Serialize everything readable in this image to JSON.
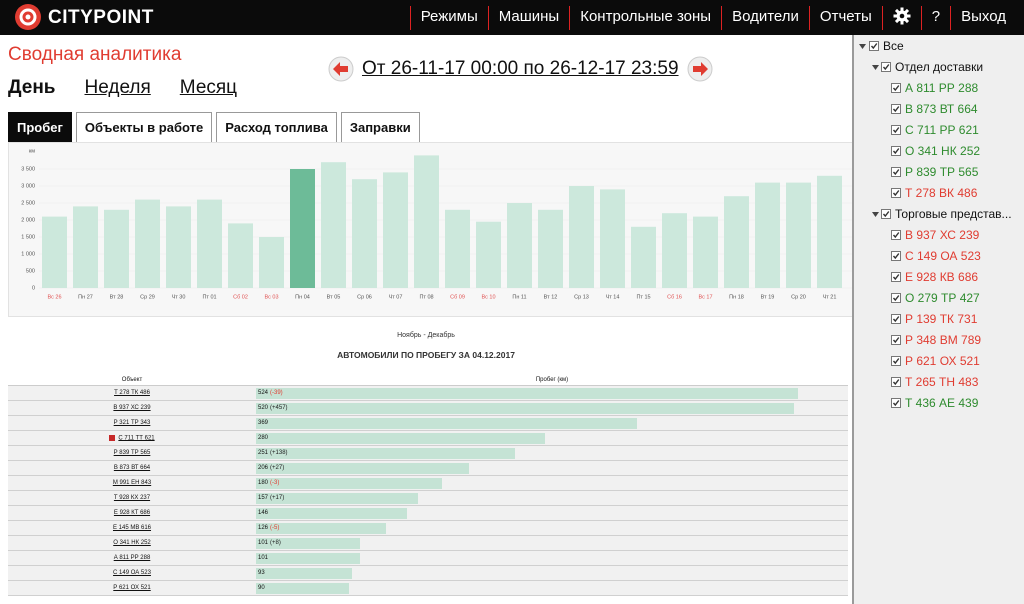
{
  "header": {
    "logo": "CITYPOINT",
    "menu": [
      "Режимы",
      "Машины",
      "Контрольные зоны",
      "Водители",
      "Отчеты"
    ],
    "help": "?",
    "logout": "Выход"
  },
  "page": {
    "title": "Сводная аналитика",
    "date_range": "От 26-11-17 00:00 по 26-12-17 23:59",
    "periods": [
      "День",
      "Неделя",
      "Месяц"
    ],
    "tabs": [
      "Пробег",
      "Объекты в работе",
      "Расход топлива",
      "Заправки"
    ]
  },
  "chart_data": [
    {
      "type": "bar",
      "y_label": "км",
      "x_label": "Ноябрь - Декабрь",
      "categories": [
        "Вс 26",
        "Пн 27",
        "Вт 28",
        "Ср 29",
        "Чт 30",
        "Пт 01",
        "Сб 02",
        "Вс 03",
        "Пн 04",
        "Вт 05",
        "Ср 06",
        "Чт 07",
        "Пт 08",
        "Сб 09",
        "Вс 10",
        "Пн 11",
        "Вт 12",
        "Ср 13",
        "Чт 14",
        "Пт 15",
        "Сб 16",
        "Вс 17",
        "Пн 18",
        "Вт 19",
        "Ср 20",
        "Чт 21"
      ],
      "label_colors": [
        "#e05050",
        "#555555",
        "#555555",
        "#555555",
        "#555555",
        "#555555",
        "#e05050",
        "#e05050",
        "#555555",
        "#555555",
        "#555555",
        "#555555",
        "#555555",
        "#e05050",
        "#e05050",
        "#555555",
        "#555555",
        "#555555",
        "#555555",
        "#555555",
        "#e05050",
        "#e05050",
        "#555555",
        "#555555",
        "#555555",
        "#555555"
      ],
      "values": [
        2100,
        2400,
        2300,
        2600,
        2400,
        2600,
        1900,
        1500,
        3500,
        3700,
        3200,
        3400,
        3900,
        2300,
        1950,
        2500,
        2300,
        3000,
        2900,
        1800,
        2200,
        2100,
        2700,
        3100,
        3100,
        3300
      ],
      "color": "#cce8dc",
      "selected_color": "#6dbb98",
      "selected_index": 8,
      "ylim": [
        0,
        4000
      ],
      "yticks": [
        0,
        500,
        {
          "value": 1000,
          "label": "1 000"
        },
        {
          "value": 1500,
          "label": "1 500"
        },
        {
          "value": 2000,
          "label": "2 000"
        },
        {
          "value": 2500,
          "label": "2 500"
        },
        {
          "value": 3000,
          "label": "3 000"
        },
        {
          "value": 3500,
          "label": "3 500"
        }
      ],
      "grid": true
    },
    {
      "type": "table-bar",
      "title": "АВТОМОБИЛИ ПО ПРОБЕГУ ЗА 04.12.2017",
      "columns": [
        "Объект",
        "Пробег (км)"
      ],
      "categories": [
        "Т 278 ТК 486",
        "В 937 ХС 239",
        "Р 321 ТР 343",
        "С 711 ТТ 621",
        "Р 839 ТР 565",
        "В 873 ВТ 664",
        "М 991 ЕН 843",
        "Т 928 КХ 237",
        "Е 928 КТ 686",
        "Е 145 МВ 616",
        "О 341 НК 252",
        "А 811 РР 288",
        "С 149 ОА 523",
        "Р 621 ОХ 521"
      ],
      "values": [
        524,
        520,
        369,
        280,
        251,
        206,
        180,
        157,
        146,
        126,
        101,
        101,
        93,
        90
      ],
      "deltas": [
        {
          "label": "(-39)",
          "color": "#e03c31"
        },
        {
          "label": "(+457)",
          "color": "#222222"
        },
        null,
        null,
        {
          "label": "(+138)",
          "color": "#222222"
        },
        {
          "label": "(+27)",
          "color": "#222222"
        },
        {
          "label": "(-3)",
          "color": "#e03c31"
        },
        {
          "label": "(+17)",
          "color": "#222222"
        },
        null,
        {
          "label": "(-5)",
          "color": "#e03c31"
        },
        {
          "label": "(+8)",
          "color": "#222222"
        },
        null,
        null,
        null
      ],
      "alerts": [
        false,
        false,
        false,
        true,
        false,
        false,
        false,
        false,
        false,
        false,
        false,
        false,
        false,
        false
      ],
      "color": "#c5e3d5"
    }
  ],
  "tree": {
    "label": "Все",
    "children": [
      {
        "label": "Отдел доставки",
        "children": [
          {
            "label": "А 811 РР 288",
            "color": "#2e8b2e"
          },
          {
            "label": "В 873 ВТ 664",
            "color": "#2e8b2e"
          },
          {
            "label": "С 711 РР 621",
            "color": "#2e8b2e"
          },
          {
            "label": "О 341 НК 252",
            "color": "#2e8b2e"
          },
          {
            "label": "Р 839 ТР 565",
            "color": "#2e8b2e"
          },
          {
            "label": "Т 278 ВК 486",
            "color": "#e03c31"
          }
        ]
      },
      {
        "label": "Торговые представ...",
        "children": [
          {
            "label": "В 937 ХС 239",
            "color": "#e03c31"
          },
          {
            "label": "С 149 ОА 523",
            "color": "#e03c31"
          },
          {
            "label": "Е 928 КВ 686",
            "color": "#e03c31"
          },
          {
            "label": "О 279 ТР 427",
            "color": "#2e8b2e"
          },
          {
            "label": "Р 139 ТК 731",
            "color": "#e03c31"
          },
          {
            "label": "Р 348 ВМ 789",
            "color": "#e03c31"
          },
          {
            "label": "Р 621 ОХ 521",
            "color": "#e03c31"
          },
          {
            "label": "Т 265 ТН 483",
            "color": "#e03c31"
          },
          {
            "label": "Т 436 АЕ 439",
            "color": "#2e8b2e"
          }
        ]
      }
    ]
  }
}
